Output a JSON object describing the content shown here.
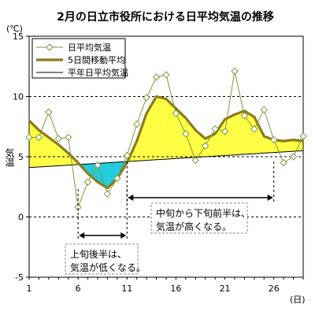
{
  "chart_data": {
    "type": "line",
    "title": "2月の日立市役所における日平均気温の推移",
    "ylabel": "気温",
    "y_unit": "(℃)",
    "x_unit": "(日)",
    "ylim": [
      -5,
      15
    ],
    "xlim": [
      1,
      29
    ],
    "y_ticks": [
      -5,
      0,
      5,
      10,
      15
    ],
    "x_ticks": [
      1,
      6,
      11,
      16,
      21,
      26
    ],
    "grid": "horizontal dashed",
    "legend_position": "top-left",
    "x": [
      1,
      2,
      3,
      4,
      5,
      6,
      7,
      8,
      9,
      10,
      11,
      12,
      13,
      14,
      15,
      16,
      17,
      18,
      19,
      20,
      21,
      22,
      23,
      24,
      25,
      26,
      27,
      28,
      29
    ],
    "series": [
      {
        "name": "日平均気温",
        "color": "#7a9a3a",
        "marker": "diamond-open",
        "values": [
          6.6,
          6.6,
          8.7,
          6.5,
          6.6,
          0.8,
          2.9,
          4.3,
          1.9,
          3.2,
          5.1,
          7.7,
          9.9,
          11.6,
          11.8,
          8.6,
          6.9,
          4.7,
          5.9,
          7.3,
          7.1,
          12.1,
          8.4,
          7.3,
          8.9,
          6.4,
          4.5,
          5.0,
          6.7
        ]
      },
      {
        "name": "5日間移動平均",
        "color": "#8c7a1e",
        "values": [
          8.0,
          7.2,
          6.6,
          6.0,
          5.3,
          4.5,
          3.6,
          2.9,
          2.4,
          3.2,
          4.5,
          6.3,
          8.6,
          10.0,
          9.8,
          9.0,
          8.2,
          7.2,
          6.5,
          6.9,
          8.1,
          8.5,
          8.8,
          8.3,
          6.7,
          6.4,
          6.3,
          6.4,
          6.3
        ]
      },
      {
        "name": "平年日平均気温",
        "color": "#000000",
        "values": [
          4.1,
          4.15,
          4.2,
          4.25,
          4.3,
          4.35,
          4.4,
          4.45,
          4.5,
          4.55,
          4.6,
          4.65,
          4.7,
          4.75,
          4.8,
          4.85,
          4.9,
          4.95,
          5.0,
          5.05,
          5.1,
          5.15,
          5.2,
          5.25,
          5.3,
          5.35,
          5.4,
          5.45,
          5.5
        ]
      }
    ],
    "fill_colors": {
      "above_normal": "#ffff44",
      "below_normal": "#22ccdd"
    },
    "annotations": [
      {
        "text": "中旬から下旬前半は、\n気温が高くなる。",
        "x_range": [
          11,
          26
        ]
      },
      {
        "text": "上旬後半は、\n気温が低くなる。",
        "x_range": [
          6,
          11
        ]
      }
    ]
  }
}
